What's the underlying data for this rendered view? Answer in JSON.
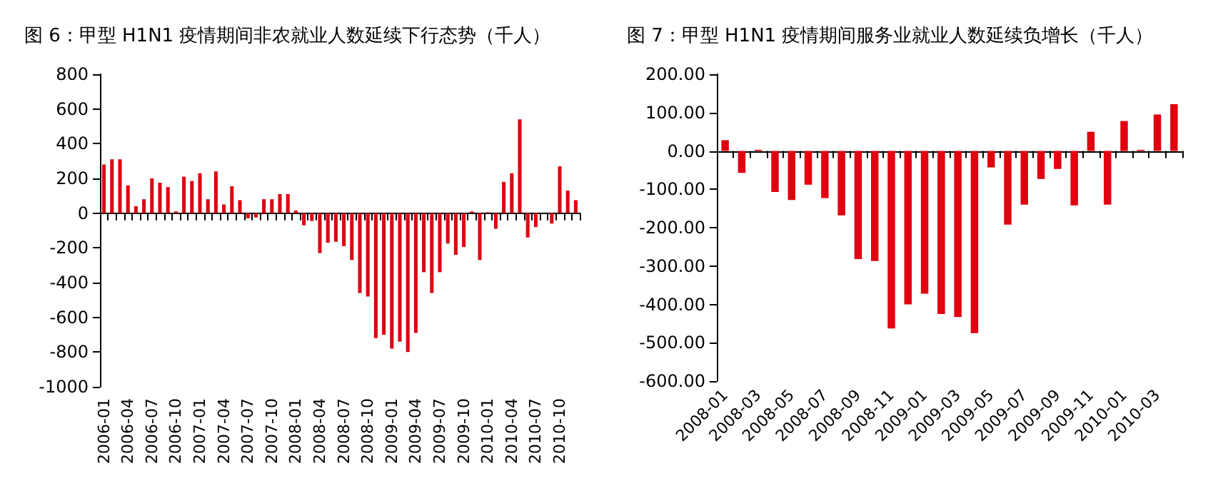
{
  "chart_data": [
    {
      "type": "bar",
      "title": "图 6：甲型 H1N1 疫情期间非农就业人数延续下行态势（千人）",
      "categories": [
        "2006-01",
        null,
        null,
        "2006-04",
        null,
        null,
        "2006-07",
        null,
        null,
        "2006-10",
        null,
        null,
        "2007-01",
        null,
        null,
        "2007-04",
        null,
        null,
        "2007-07",
        null,
        null,
        "2007-10",
        null,
        null,
        "2008-01",
        null,
        null,
        "2008-04",
        null,
        null,
        "2008-07",
        null,
        null,
        "2008-10",
        null,
        null,
        "2009-01",
        null,
        null,
        "2009-04",
        null,
        null,
        "2009-07",
        null,
        null,
        "2009-10",
        null,
        null,
        "2010-01",
        null,
        null,
        "2010-04",
        null,
        null,
        "2010-07",
        null,
        null,
        "2010-10",
        null,
        null
      ],
      "values": [
        280,
        310,
        310,
        160,
        40,
        80,
        200,
        175,
        150,
        10,
        210,
        185,
        230,
        80,
        240,
        50,
        155,
        75,
        -30,
        -25,
        80,
        80,
        110,
        110,
        15,
        -70,
        -45,
        -230,
        -170,
        -165,
        -190,
        -270,
        -460,
        -480,
        -720,
        -700,
        -780,
        -740,
        -800,
        -690,
        -340,
        -460,
        -340,
        -175,
        -240,
        -195,
        10,
        -270,
        5,
        -90,
        180,
        230,
        540,
        -140,
        -80,
        0,
        -60,
        270,
        130,
        75
      ],
      "color": "#e00010",
      "ylim": [
        -1000,
        800
      ],
      "yticks": [
        -1000,
        -800,
        -600,
        -400,
        -200,
        0,
        200,
        400,
        600,
        800
      ]
    },
    {
      "type": "bar",
      "title": "图 7：甲型 H1N1 疫情期间服务业就业人数延续负增长（千人）",
      "categories": [
        "2008-01",
        null,
        "2008-03",
        null,
        "2008-05",
        null,
        "2008-07",
        null,
        "2008-09",
        null,
        "2008-11",
        null,
        "2009-01",
        null,
        "2009-03",
        null,
        "2009-05",
        null,
        "2009-07",
        null,
        "2009-09",
        null,
        "2009-11",
        null,
        "2010-01",
        null,
        "2010-03",
        null
      ],
      "values": [
        28,
        -57,
        3,
        -107,
        -128,
        -88,
        -123,
        -168,
        -282,
        -287,
        -463,
        -400,
        -372,
        -425,
        -433,
        -475,
        -43,
        -192,
        -140,
        -73,
        -47,
        -142,
        50,
        -140,
        78,
        3,
        95,
        122
      ],
      "color": "#e00010",
      "ylim": [
        -600,
        200
      ],
      "yticks": [
        {
          "value": -600,
          "label": "-600.00"
        },
        {
          "value": -500,
          "label": "-500.00"
        },
        {
          "value": -400,
          "label": "-400.00"
        },
        {
          "value": -300,
          "label": "-300.00"
        },
        {
          "value": -200,
          "label": "-200.00"
        },
        {
          "value": -100,
          "label": "-100.00"
        },
        {
          "value": 0,
          "label": "0.00"
        },
        {
          "value": 100,
          "label": "100.00"
        },
        {
          "value": 200,
          "label": "200.00"
        }
      ]
    }
  ]
}
